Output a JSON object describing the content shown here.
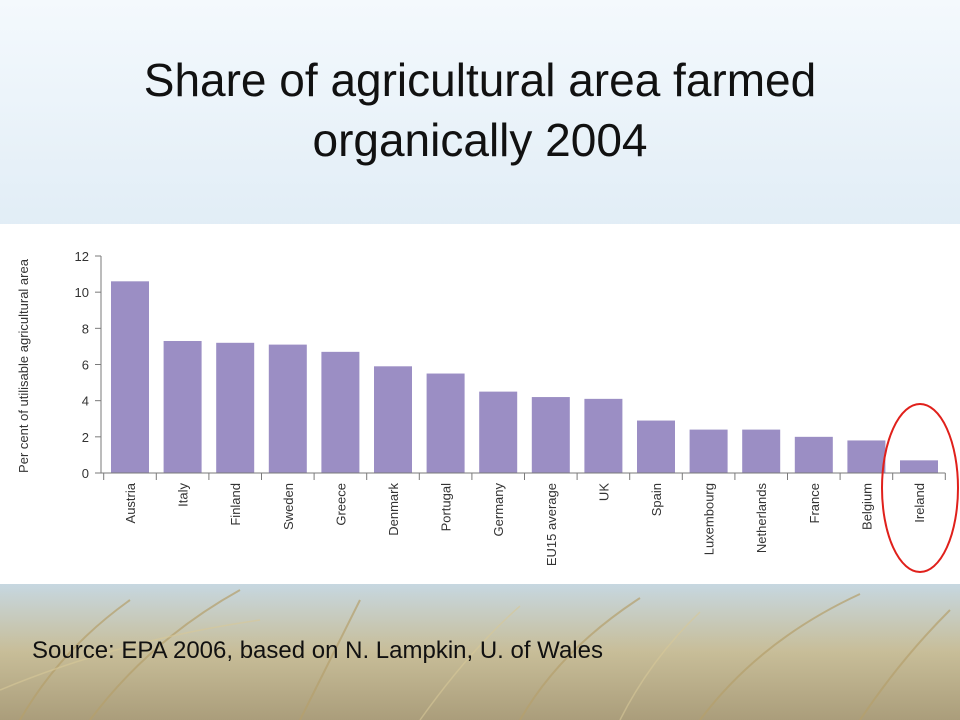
{
  "slide": {
    "title_line1": "Share of agricultural area farmed",
    "title_line2": "organically 2004",
    "source": "Source:  EPA 2006, based on N. Lampkin, U. of Wales"
  },
  "colors": {
    "bar": "#9b8ec4",
    "axis": "#7a7a7a",
    "highlight_ring": "#e0201b",
    "title_text": "#111111"
  },
  "chart_data": {
    "type": "bar",
    "title": "",
    "ylabel": "Per cent of utilisable agricultural area",
    "xlabel": "",
    "ylim": [
      0,
      12
    ],
    "yticks": [
      0,
      2,
      4,
      6,
      8,
      10,
      12
    ],
    "grid": false,
    "categories": [
      "Austria",
      "Italy",
      "Finland",
      "Sweden",
      "Greece",
      "Denmark",
      "Portugal",
      "Germany",
      "EU15 average",
      "UK",
      "Spain",
      "Luxembourg",
      "Netherlands",
      "France",
      "Belgium",
      "Ireland"
    ],
    "values": [
      10.6,
      7.3,
      7.2,
      7.1,
      6.7,
      5.9,
      5.5,
      4.5,
      4.2,
      4.1,
      2.9,
      2.4,
      2.4,
      2.0,
      1.8,
      0.7
    ],
    "highlighted_category": "Ireland"
  }
}
